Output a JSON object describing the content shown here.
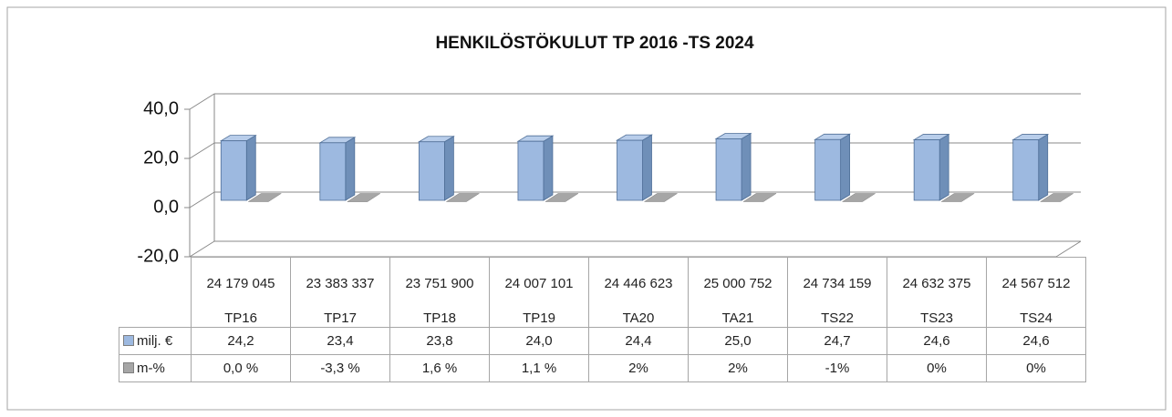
{
  "chart_data": {
    "type": "bar3d",
    "title": "HENKILÖSTÖKULUT TP 2016 -TS 2024",
    "categories": [
      "TP16",
      "TP17",
      "TP18",
      "TP19",
      "TA20",
      "TA21",
      "TS22",
      "TS23",
      "TS24"
    ],
    "amounts": [
      24179045,
      23383337,
      23751900,
      24007101,
      24446623,
      25000752,
      24734159,
      24632375,
      24567512
    ],
    "amount_labels": [
      "24 179 045",
      "23 383 337",
      "23 751 900",
      "24 007 101",
      "24 446 623",
      "25 000 752",
      "24 734 159",
      "24 632 375",
      "24 567 512"
    ],
    "series": [
      {
        "name": "milj. €",
        "color": "#9db9e0",
        "values": [
          24.2,
          23.4,
          23.8,
          24.0,
          24.4,
          25.0,
          24.7,
          24.6,
          24.6
        ],
        "value_labels": [
          "24,2",
          "23,4",
          "23,8",
          "24,0",
          "24,4",
          "25,0",
          "24,7",
          "24,6",
          "24,6"
        ]
      },
      {
        "name": "m-%",
        "color": "#a6a6a6",
        "values": [
          0.0,
          -0.033,
          0.016,
          0.011,
          0.02,
          0.02,
          -0.01,
          0.0,
          0.0
        ],
        "value_labels": [
          "0,0 %",
          "-3,3 %",
          "1,6 %",
          "1,1 %",
          "2%",
          "2%",
          "-1%",
          "0%",
          "0%"
        ]
      }
    ],
    "ylim": [
      -20,
      40
    ],
    "yticks": [
      {
        "value": -20,
        "label": "-20,0"
      },
      {
        "value": 0,
        "label": "0,0"
      },
      {
        "value": 20,
        "label": "20,0"
      },
      {
        "value": 40,
        "label": "40,0"
      }
    ],
    "grid": true
  }
}
